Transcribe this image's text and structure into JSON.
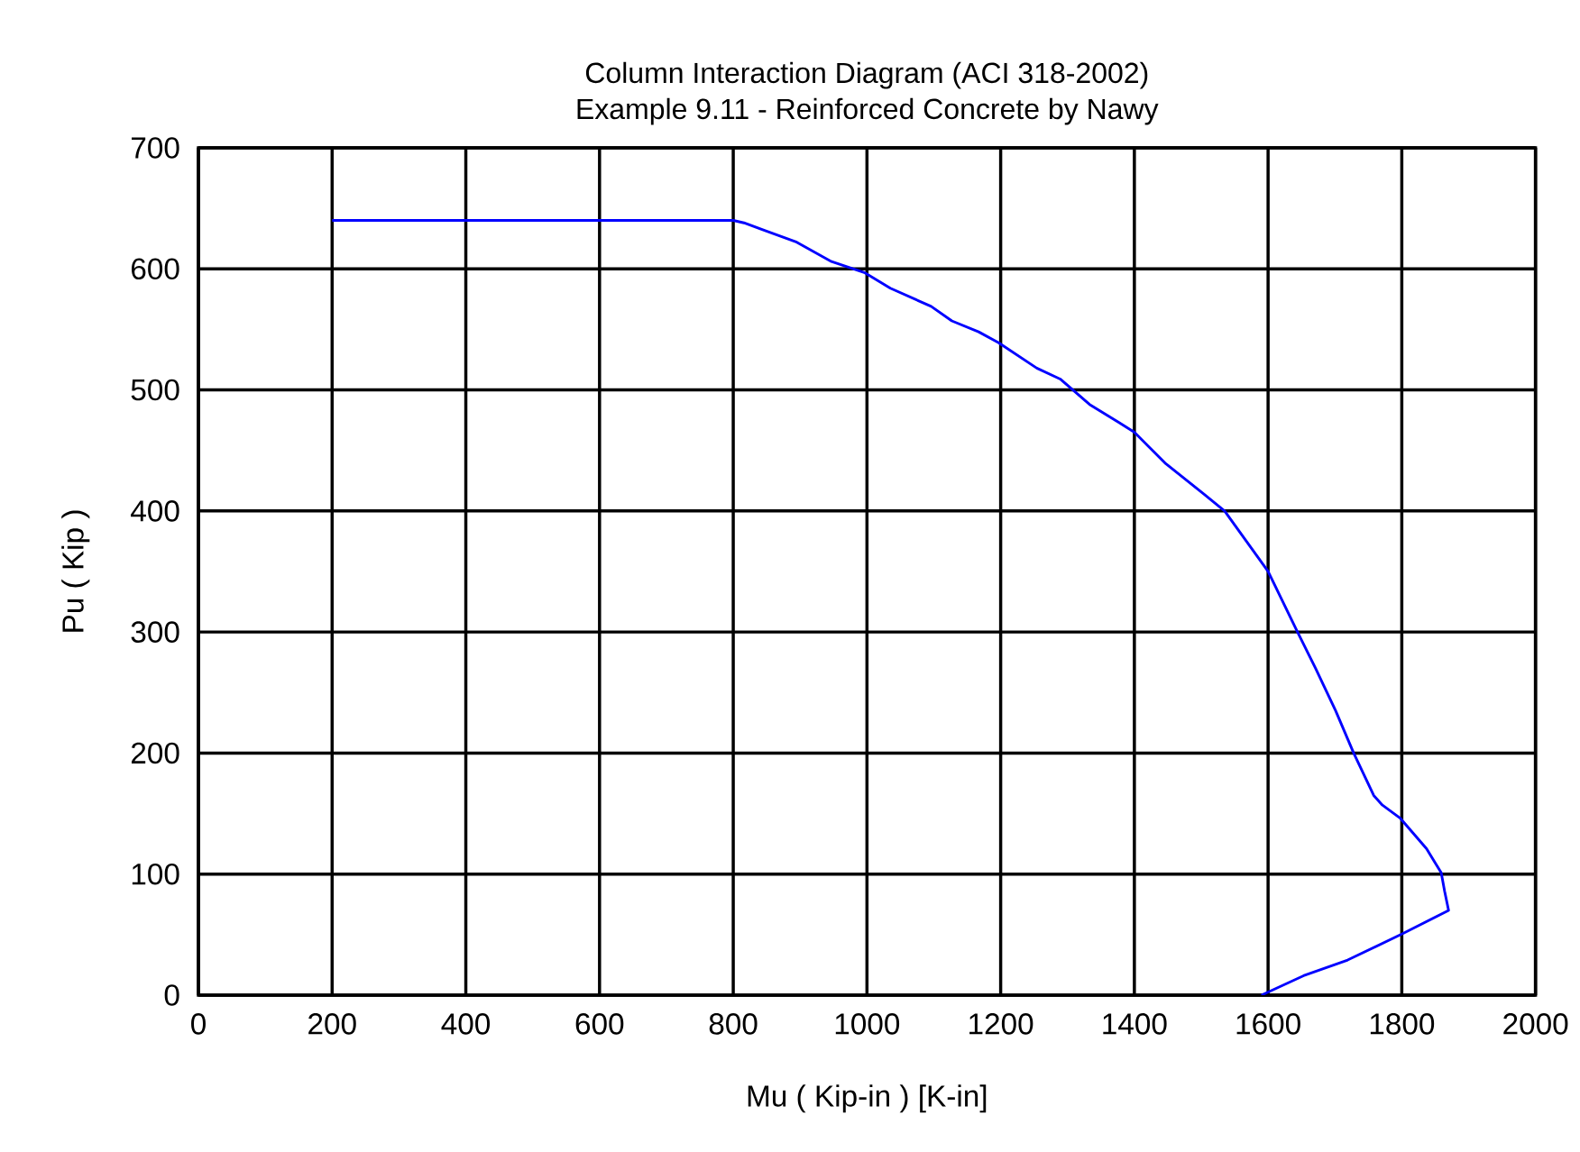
{
  "chart_data": {
    "type": "line",
    "title": "Column Interaction Diagram (ACI 318-2002)",
    "subtitle": "Example 9.11  - Reinforced Concrete by Nawy",
    "xlabel": "Mu ( Kip-in ) [K-in]",
    "ylabel": "Pu ( Kip )",
    "xlim": [
      0,
      2000
    ],
    "ylim": [
      0,
      700
    ],
    "xticks": [
      0,
      200,
      400,
      600,
      800,
      1000,
      1200,
      1400,
      1600,
      1800,
      2000
    ],
    "yticks": [
      0,
      100,
      200,
      300,
      400,
      500,
      600,
      700
    ],
    "grid": true,
    "series": [
      {
        "color": "#0000ff",
        "x": [
          200,
          800,
          816,
          895,
          947,
          996,
          1035,
          1096,
          1127,
          1167,
          1197,
          1254,
          1289,
          1333,
          1377,
          1400,
          1447,
          1504,
          1535,
          1600,
          1644,
          1671,
          1701,
          1728,
          1758,
          1771,
          1798,
          1837,
          1859,
          1864,
          1870,
          1802,
          1719,
          1653,
          1590
        ],
        "values": [
          640,
          640,
          638,
          622,
          606,
          597,
          584,
          569,
          557,
          548,
          539,
          518,
          509,
          488,
          473,
          465,
          439,
          414,
          400,
          350,
          300,
          270,
          235,
          200,
          165,
          157,
          146,
          121,
          101,
          86,
          70,
          51,
          29,
          16,
          0
        ]
      }
    ]
  }
}
